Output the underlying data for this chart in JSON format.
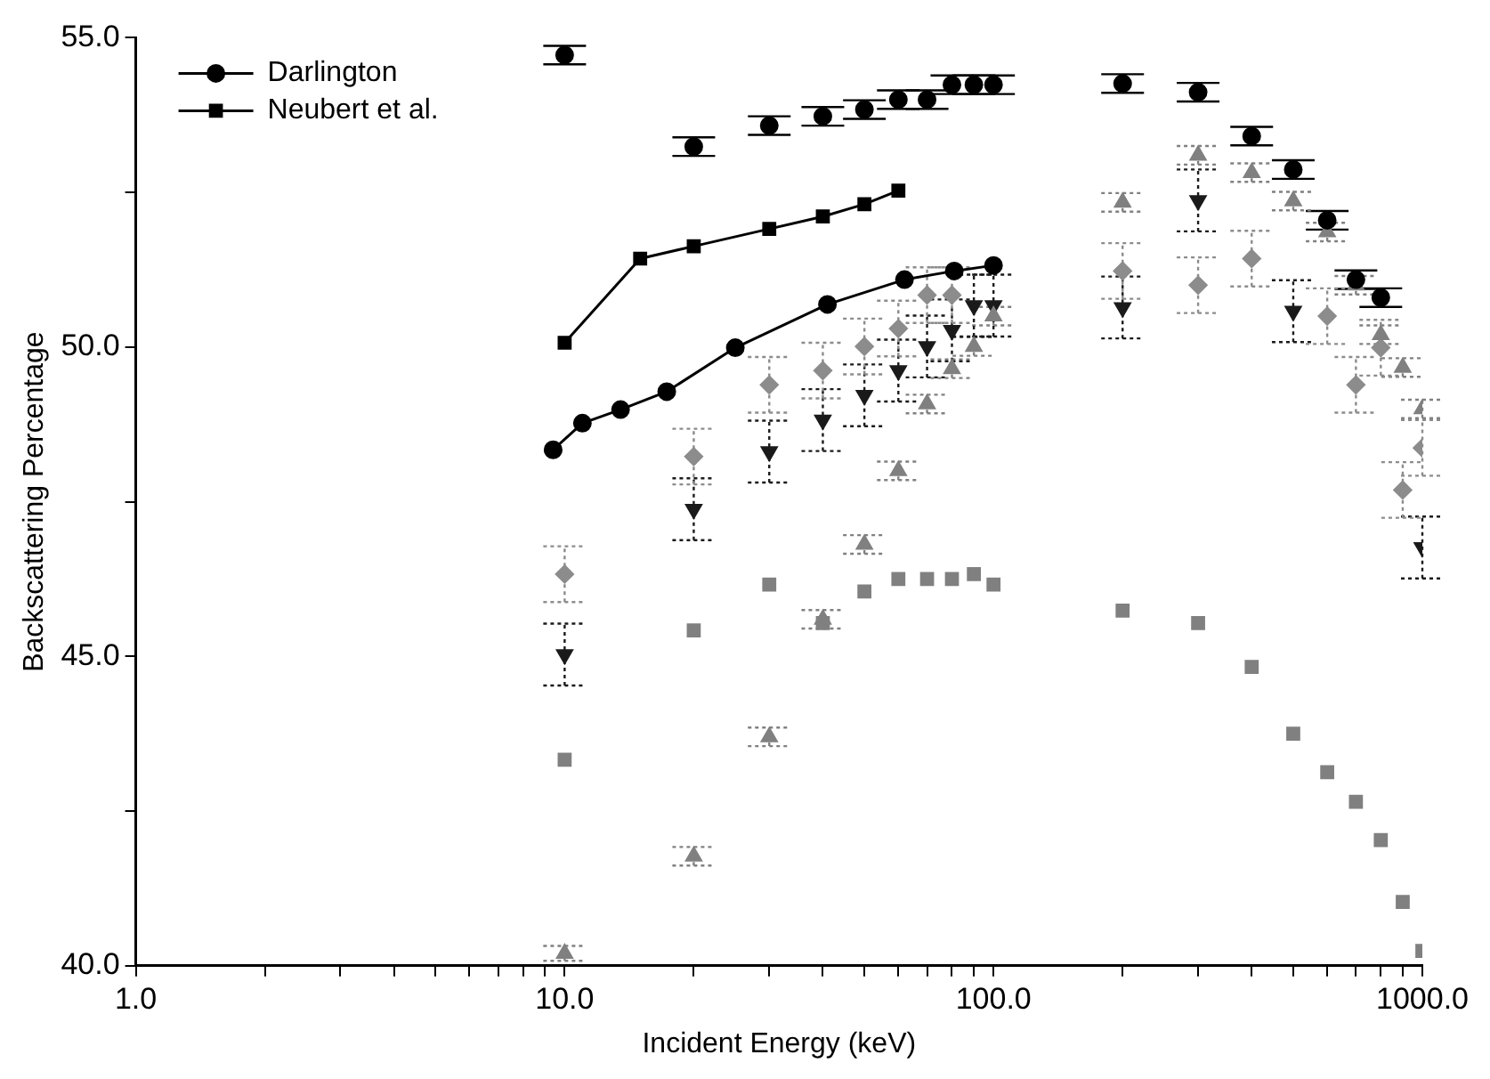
{
  "chart_data": {
    "type": "scatter",
    "xlabel": "Incident Energy (keV)",
    "ylabel": "Backscattering Percentage",
    "log": "x",
    "grid": false,
    "legend": "top left",
    "xlim": [
      1,
      1000
    ],
    "xticks": [
      {
        "value": 1,
        "label": "1.0"
      },
      {
        "value": 2,
        "label": null
      },
      {
        "value": 3,
        "label": null
      },
      {
        "value": 4,
        "label": null
      },
      {
        "value": 5,
        "label": null
      },
      {
        "value": 6,
        "label": null
      },
      {
        "value": 7,
        "label": null
      },
      {
        "value": 8,
        "label": null
      },
      {
        "value": 9,
        "label": null
      },
      {
        "value": 10,
        "label": "10.0"
      },
      {
        "value": 20,
        "label": null
      },
      {
        "value": 30,
        "label": null
      },
      {
        "value": 40,
        "label": null
      },
      {
        "value": 50,
        "label": null
      },
      {
        "value": 60,
        "label": null
      },
      {
        "value": 70,
        "label": null
      },
      {
        "value": 80,
        "label": null
      },
      {
        "value": 90,
        "label": null
      },
      {
        "value": 100,
        "label": "100.0"
      },
      {
        "value": 200,
        "label": null
      },
      {
        "value": 300,
        "label": null
      },
      {
        "value": 400,
        "label": null
      },
      {
        "value": 500,
        "label": null
      },
      {
        "value": 600,
        "label": null
      },
      {
        "value": 700,
        "label": null
      },
      {
        "value": 800,
        "label": null
      },
      {
        "value": 900,
        "label": null
      },
      {
        "value": 1000,
        "label": "1000.0"
      }
    ],
    "ylim": [
      40,
      55
    ],
    "yticks": [
      {
        "value": 40,
        "label": "40.0"
      },
      {
        "value": 42.5,
        "label": null
      },
      {
        "value": 45,
        "label": "45.0"
      },
      {
        "value": 47.5,
        "label": null
      },
      {
        "value": 50,
        "label": "50.0"
      },
      {
        "value": 52.5,
        "label": null
      },
      {
        "value": 55,
        "label": "55.0"
      }
    ],
    "series": [
      {
        "marker": "circle",
        "color": "#000000",
        "x": [
          10,
          20,
          30,
          40,
          50,
          60,
          70,
          80,
          90,
          100,
          200,
          300,
          400,
          500,
          600,
          700,
          800
        ],
        "values": [
          54.72,
          53.24,
          53.58,
          53.73,
          53.84,
          54.0,
          54.0,
          54.24,
          54.24,
          54.24,
          54.26,
          54.12,
          53.41,
          52.87,
          52.05,
          51.09,
          50.8
        ],
        "errors": [
          0.15,
          0.15,
          0.15,
          0.15,
          0.15,
          0.15,
          0.15,
          0.15,
          0.15,
          0.15,
          0.15,
          0.15,
          0.15,
          0.15,
          0.15,
          0.15,
          0.15
        ]
      },
      {
        "marker": "triangle",
        "color": "#808080",
        "x": [
          10,
          20,
          30,
          40,
          50,
          60,
          70,
          80,
          90,
          100,
          200,
          300,
          400,
          500,
          600,
          700,
          800,
          900,
          1000
        ],
        "values": [
          40.2,
          41.77,
          43.7,
          45.6,
          46.81,
          48.0,
          49.08,
          49.65,
          50.01,
          50.5,
          52.34,
          53.1,
          52.82,
          52.36,
          51.86,
          51.0,
          50.2,
          49.67,
          49.0
        ],
        "errors": [
          0.12,
          0.15,
          0.15,
          0.15,
          0.15,
          0.15,
          0.15,
          0.15,
          0.15,
          0.15,
          0.15,
          0.15,
          0.15,
          0.15,
          0.15,
          0.15,
          0.15,
          0.15,
          0.15
        ]
      },
      {
        "marker": "square",
        "color": "#808080",
        "x": [
          10,
          20,
          30,
          40,
          50,
          60,
          70,
          80,
          90,
          100,
          200,
          300,
          400,
          500,
          600,
          700,
          800,
          900,
          1000
        ],
        "values": [
          43.33,
          45.42,
          46.16,
          45.54,
          46.05,
          46.25,
          46.25,
          46.25,
          46.33,
          46.16,
          45.74,
          45.54,
          44.83,
          43.75,
          43.13,
          42.65,
          42.03,
          41.03,
          40.24
        ]
      },
      {
        "type": "line",
        "marker": "circle",
        "name": "Darlington",
        "color": "#000000",
        "x": [
          9.4,
          11,
          13.5,
          17.3,
          25,
          41,
          62,
          81,
          100
        ],
        "values": [
          48.34,
          48.77,
          48.99,
          49.28,
          49.99,
          50.69,
          51.09,
          51.23,
          51.32
        ]
      },
      {
        "type": "line",
        "marker": "square",
        "name": "Neubert et al.",
        "color": "#000000",
        "x": [
          10,
          15,
          20,
          30,
          40,
          50,
          60
        ],
        "values": [
          50.07,
          51.43,
          51.63,
          51.91,
          52.11,
          52.31,
          52.53
        ]
      },
      {
        "marker": "triangle-down",
        "color": "#1a1a1a",
        "x": [
          10,
          20,
          30,
          40,
          50,
          60,
          70,
          80,
          90,
          100,
          200,
          300,
          500,
          1000
        ],
        "values": [
          45.03,
          47.38,
          48.31,
          48.82,
          49.22,
          49.62,
          50.01,
          50.27,
          50.67,
          50.67,
          50.64,
          52.37,
          50.58,
          46.76
        ],
        "errors": [
          0.5,
          0.5,
          0.5,
          0.5,
          0.5,
          0.5,
          0.5,
          0.5,
          0.5,
          0.5,
          0.5,
          0.5,
          0.5,
          0.5
        ]
      },
      {
        "marker": "diamond",
        "color": "#8c8c8c",
        "x": [
          10,
          20,
          30,
          40,
          50,
          60,
          70,
          80,
          200,
          300,
          400,
          600,
          700,
          800,
          900,
          1000
        ],
        "values": [
          46.33,
          48.23,
          49.39,
          49.62,
          50.01,
          50.3,
          50.84,
          50.84,
          51.23,
          51.0,
          51.43,
          50.5,
          49.39,
          49.99,
          47.69,
          48.37
        ],
        "errors": [
          0.45,
          0.45,
          0.45,
          0.45,
          0.45,
          0.45,
          0.45,
          0.45,
          0.45,
          0.45,
          0.45,
          0.45,
          0.45,
          0.45,
          0.45,
          0.45
        ]
      }
    ]
  }
}
